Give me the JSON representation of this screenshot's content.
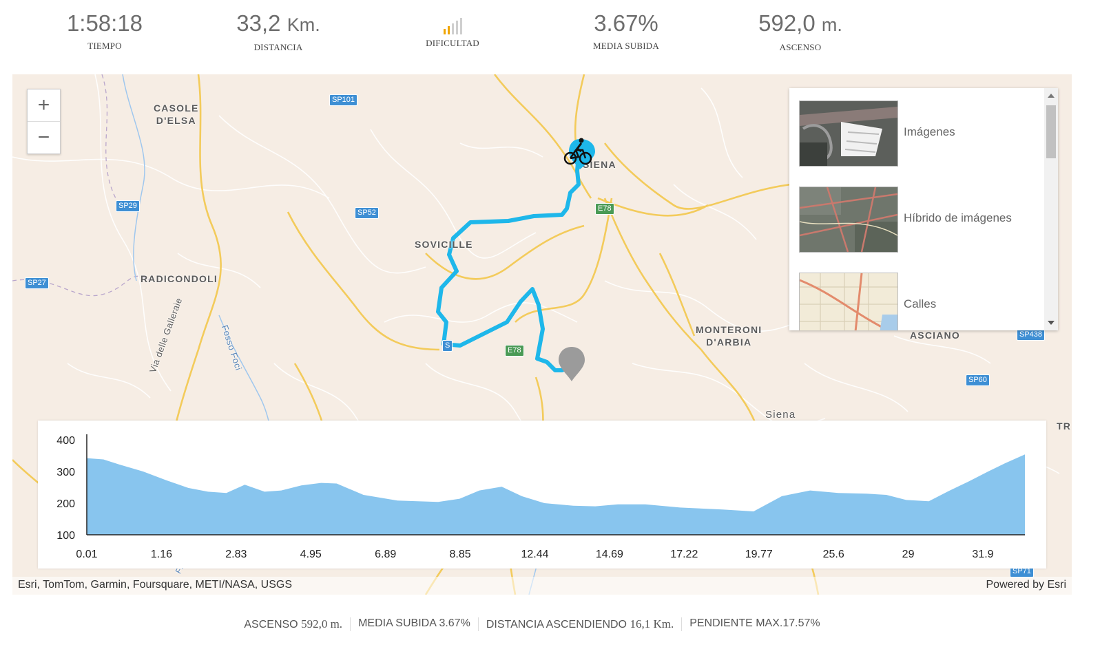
{
  "stats": {
    "time": {
      "value": "1:58:18",
      "label": "TIEMPO"
    },
    "distance": {
      "value": "33,2",
      "unit": "Km.",
      "label": "DISTANCIA"
    },
    "difficulty": {
      "label": "DIFICULTAD",
      "level": 2,
      "max": 5,
      "active_color": "#f0a500"
    },
    "avg_climb": {
      "value": "3.67%",
      "label": "MEDIA SUBIDA"
    },
    "ascent": {
      "value": "592,0",
      "unit": "m.",
      "label": "ASCENSO"
    }
  },
  "map": {
    "labels": {
      "casole": "CASOLE\nD'ELSA",
      "radicondoli": "RADICONDOLI",
      "sovicille": "SOVICILLE",
      "siena": "SIENA",
      "monteroni": "MONTERONI\nD'ARBIA",
      "asciano": "ASCIANO",
      "siena_small": "Siena",
      "tr": "TR",
      "via": "Via delle Galleraie",
      "fosso": "Fosso Foci",
      "fiu": "Fiu"
    },
    "shields": {
      "sp101": "SP101",
      "sp29": "SP29",
      "sp52": "SP52",
      "sp27": "SP27",
      "sp438": "SP438",
      "sp60": "SP60",
      "e78a": "E78",
      "e78b": "E78",
      "s": "S",
      "sp71": "SP71"
    },
    "zoom": {
      "in": "+",
      "out": "−"
    },
    "basemaps": [
      {
        "label": "Imágenes",
        "thumb": "imagery"
      },
      {
        "label": "Híbrido de imágenes",
        "thumb": "hybrid"
      },
      {
        "label": "Calles",
        "thumb": "streets"
      }
    ],
    "route_color": "#1eb7ea",
    "start_icon": "cyclist-icon",
    "end_icon": "gray-pin-icon",
    "attribution": "Esri, TomTom, Garmin, Foursquare, METI/NASA, USGS",
    "powered_by": "Powered by Esri"
  },
  "chart_data": {
    "type": "area",
    "xlabel": "",
    "ylabel": "",
    "ylim": [
      100,
      400
    ],
    "yticks": [
      100,
      200,
      300,
      400
    ],
    "x_tick_labels": [
      "0.01",
      "1.16",
      "2.83",
      "4.95",
      "6.89",
      "8.85",
      "12.44",
      "14.69",
      "17.22",
      "19.77",
      "25.6",
      "29",
      "31.9"
    ],
    "x": [
      0.01,
      0.6,
      1.16,
      2.0,
      2.83,
      3.6,
      4.3,
      4.95,
      5.6,
      6.3,
      6.89,
      7.6,
      8.3,
      8.85,
      9.8,
      11.0,
      12.44,
      13.2,
      13.9,
      14.69,
      15.4,
      16.2,
      17.22,
      18.0,
      18.8,
      19.77,
      21.0,
      22.5,
      23.6,
      24.6,
      25.6,
      26.6,
      27.6,
      28.3,
      29,
      29.8,
      30.5,
      31.2,
      31.9,
      32.5,
      33.2
    ],
    "values": [
      342,
      338,
      322,
      300,
      272,
      248,
      236,
      232,
      258,
      236,
      240,
      256,
      264,
      262,
      226,
      208,
      204,
      214,
      240,
      252,
      222,
      200,
      192,
      190,
      196,
      196,
      186,
      180,
      174,
      222,
      240,
      232,
      230,
      226,
      210,
      206,
      238,
      268,
      300,
      326,
      354
    ],
    "color": "#88c5ee"
  },
  "bottom": {
    "ascent": {
      "label": "ASCENSO",
      "value": "592,0 m."
    },
    "avg": {
      "label": "MEDIA SUBIDA",
      "value": "3.67%"
    },
    "dist": {
      "label": "DISTANCIA ASCENDIENDO",
      "value": "16,1 Km."
    },
    "maxslope": {
      "label": "PENDIENTE MAX.",
      "value": "17.57%"
    }
  }
}
